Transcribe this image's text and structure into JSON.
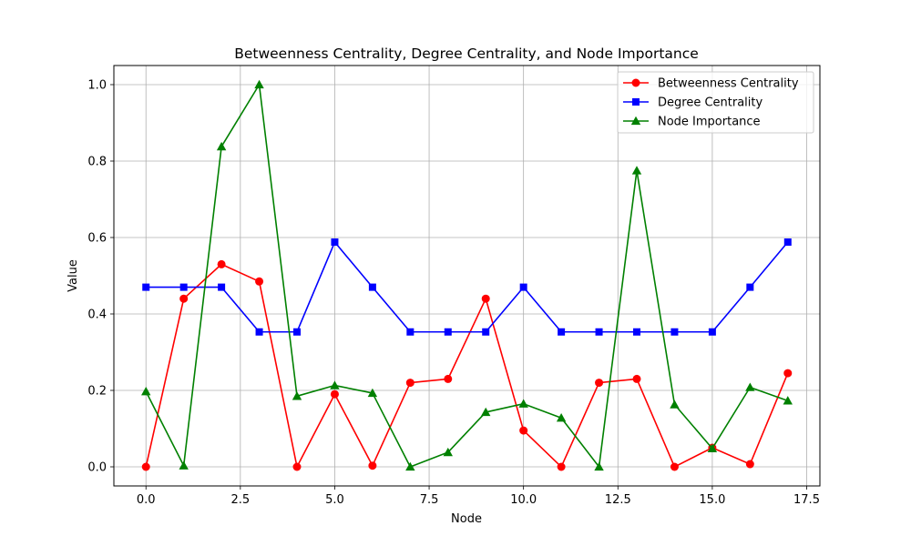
{
  "chart_data": {
    "type": "line",
    "title": "Betweenness Centrality, Degree Centrality, and Node Importance",
    "xlabel": "Node",
    "ylabel": "Value",
    "xlim": [
      -0.85,
      17.85
    ],
    "ylim": [
      -0.05,
      1.05
    ],
    "xticks": [
      0.0,
      2.5,
      5.0,
      7.5,
      10.0,
      12.5,
      15.0,
      17.5
    ],
    "xtick_labels": [
      "0.0",
      "2.5",
      "5.0",
      "7.5",
      "10.0",
      "12.5",
      "15.0",
      "17.5"
    ],
    "yticks": [
      0.0,
      0.2,
      0.4,
      0.6,
      0.8,
      1.0
    ],
    "ytick_labels": [
      "0.0",
      "0.2",
      "0.4",
      "0.6",
      "0.8",
      "1.0"
    ],
    "grid": true,
    "legend_position": "top-right",
    "x": [
      0,
      1,
      2,
      3,
      4,
      5,
      6,
      7,
      8,
      9,
      10,
      11,
      12,
      13,
      14,
      15,
      16,
      17
    ],
    "series": [
      {
        "name": "Betweenness Centrality",
        "color": "#ff0000",
        "marker": "circle",
        "values": [
          0.0,
          0.44,
          0.53,
          0.485,
          0.0,
          0.19,
          0.003,
          0.22,
          0.23,
          0.44,
          0.095,
          0.0,
          0.22,
          0.23,
          0.0,
          0.05,
          0.007,
          0.245
        ]
      },
      {
        "name": "Degree Centrality",
        "color": "#0000ff",
        "marker": "square",
        "values": [
          0.47,
          0.47,
          0.47,
          0.353,
          0.353,
          0.588,
          0.47,
          0.353,
          0.353,
          0.353,
          0.47,
          0.353,
          0.353,
          0.353,
          0.353,
          0.353,
          0.47,
          0.588
        ]
      },
      {
        "name": "Node Importance",
        "color": "#008000",
        "marker": "triangle",
        "values": [
          0.197,
          0.003,
          0.838,
          1.0,
          0.185,
          0.213,
          0.193,
          0.0,
          0.038,
          0.143,
          0.165,
          0.128,
          0.0,
          0.775,
          0.163,
          0.048,
          0.208,
          0.173
        ]
      }
    ]
  }
}
